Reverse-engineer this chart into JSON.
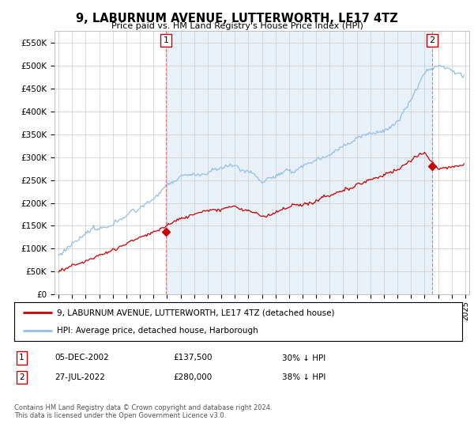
{
  "title": "9, LABURNUM AVENUE, LUTTERWORTH, LE17 4TZ",
  "subtitle": "Price paid vs. HM Land Registry's House Price Index (HPI)",
  "ylim": [
    0,
    575000
  ],
  "yticks": [
    0,
    50000,
    100000,
    150000,
    200000,
    250000,
    300000,
    350000,
    400000,
    450000,
    500000,
    550000
  ],
  "ytick_labels": [
    "£0",
    "£50K",
    "£100K",
    "£150K",
    "£200K",
    "£250K",
    "£300K",
    "£350K",
    "£400K",
    "£450K",
    "£500K",
    "£550K"
  ],
  "hpi_color": "#92bfe8",
  "hpi_fill_color": "#ddeeff",
  "sale_color": "#cc0000",
  "vline_color": "#e08080",
  "sale1_year": 2002.917,
  "sale2_year": 2022.542,
  "sale1_value": 137500,
  "sale2_value": 280000,
  "annotation1": "1",
  "annotation2": "2",
  "legend_sale_label": "9, LABURNUM AVENUE, LUTTERWORTH, LE17 4TZ (detached house)",
  "legend_hpi_label": "HPI: Average price, detached house, Harborough",
  "table_row1": [
    "1",
    "05-DEC-2002",
    "£137,500",
    "30% ↓ HPI"
  ],
  "table_row2": [
    "2",
    "27-JUL-2022",
    "£280,000",
    "38% ↓ HPI"
  ],
  "footer": "Contains HM Land Registry data © Crown copyright and database right 2024.\nThis data is licensed under the Open Government Licence v3.0.",
  "background_color": "#ffffff",
  "grid_color": "#cccccc",
  "shade_color": "#e8f0f8"
}
